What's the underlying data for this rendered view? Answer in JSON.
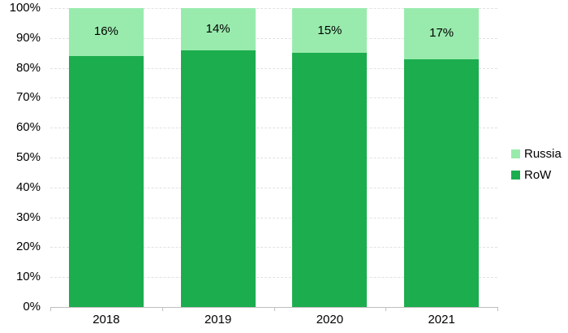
{
  "chart_data": {
    "type": "bar",
    "stacked": true,
    "title": "",
    "xlabel": "",
    "ylabel": "",
    "categories": [
      "2018",
      "2019",
      "2020",
      "2021"
    ],
    "series": [
      {
        "name": "RoW",
        "color": "#1cad4f",
        "values": [
          84,
          86,
          85,
          83
        ]
      },
      {
        "name": "Russia",
        "color": "#99ebad",
        "values": [
          16,
          14,
          15,
          17
        ]
      }
    ],
    "data_labels": {
      "series": "Russia",
      "labels": [
        "16%",
        "14%",
        "15%",
        "17%"
      ]
    },
    "y_tick_labels": [
      "0%",
      "10%",
      "20%",
      "30%",
      "40%",
      "50%",
      "60%",
      "70%",
      "80%",
      "90%",
      "100%"
    ],
    "ylim": [
      0,
      100
    ],
    "grid": true,
    "legend": {
      "position": "right",
      "items": [
        {
          "label": "Russia",
          "color": "#99ebad"
        },
        {
          "label": "RoW",
          "color": "#1cad4f"
        }
      ]
    }
  },
  "colors": {
    "grid": "#e2e2e2",
    "axis": "#bfbfbf",
    "text": "#000000",
    "background": "#ffffff"
  }
}
